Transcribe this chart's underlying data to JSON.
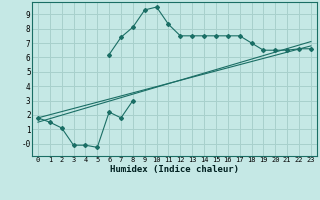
{
  "xlabel": "Humidex (Indice chaleur)",
  "background_color": "#c5e8e5",
  "grid_color": "#a8d0cc",
  "line_color": "#1a6e65",
  "xlim": [
    -0.5,
    23.5
  ],
  "ylim": [
    -0.85,
    9.85
  ],
  "xticks": [
    0,
    1,
    2,
    3,
    4,
    5,
    6,
    7,
    8,
    9,
    10,
    11,
    12,
    13,
    14,
    15,
    16,
    17,
    18,
    19,
    20,
    21,
    22,
    23
  ],
  "yticks": [
    0,
    1,
    2,
    3,
    4,
    5,
    6,
    7,
    8,
    9
  ],
  "ytick_labels": [
    "-0",
    "1",
    "2",
    "3",
    "4",
    "5",
    "6",
    "7",
    "8",
    "9"
  ],
  "curve1_x": [
    0,
    1,
    2,
    3,
    4,
    5,
    6,
    7,
    8
  ],
  "curve1_y": [
    1.8,
    1.5,
    1.1,
    -0.1,
    -0.1,
    -0.25,
    2.2,
    1.8,
    3.0
  ],
  "curve2_x": [
    6,
    7,
    8,
    9,
    10,
    11,
    12,
    13,
    14,
    15,
    16,
    17,
    18,
    19,
    20,
    21,
    22,
    23
  ],
  "curve2_y": [
    6.2,
    7.4,
    8.1,
    9.3,
    9.5,
    8.3,
    7.5,
    7.5,
    7.5,
    7.5,
    7.5,
    7.5,
    7.0,
    6.5,
    6.5,
    6.5,
    6.6,
    6.6
  ],
  "line1_x": [
    0,
    23
  ],
  "line1_y": [
    1.8,
    6.8
  ],
  "line2_x": [
    0,
    23
  ],
  "line2_y": [
    1.5,
    7.1
  ]
}
